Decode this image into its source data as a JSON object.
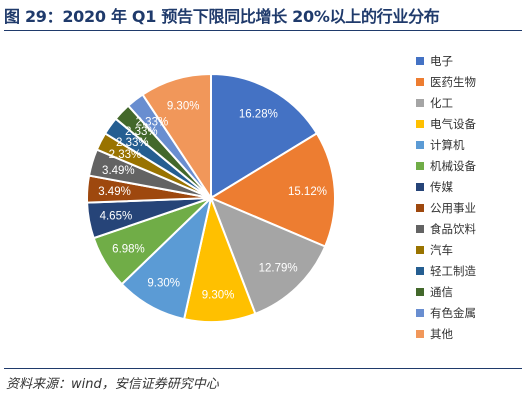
{
  "header": {
    "title": "图 29：2020 年 Q1 预告下限同比增长 20%以上的行业分布"
  },
  "footer": {
    "source": "资料来源：wind，安信证券研究中心"
  },
  "chart_data": {
    "type": "pie",
    "title": "",
    "unit": "%",
    "legend_position": "right",
    "categories": [
      "电子",
      "医药生物",
      "化工",
      "电气设备",
      "计算机",
      "机械设备",
      "传媒",
      "公用事业",
      "食品饮料",
      "汽车",
      "轻工制造",
      "通信",
      "有色金属",
      "其他"
    ],
    "values": [
      16.28,
      15.12,
      12.79,
      9.3,
      9.3,
      6.98,
      4.65,
      3.49,
      3.49,
      2.33,
      2.33,
      2.33,
      2.33,
      9.3
    ],
    "labels": [
      "16.28%",
      "15.12%",
      "12.79%",
      "9.30%",
      "9.30%",
      "6.98%",
      "4.65%",
      "3.49%",
      "3.49%",
      "2.33%",
      "2.33%",
      "2.33%",
      "2.33%",
      "9.30%"
    ],
    "colors": [
      "#4472c4",
      "#ed7d31",
      "#a5a5a5",
      "#ffc000",
      "#5b9bd5",
      "#70ad47",
      "#264478",
      "#9e480e",
      "#636363",
      "#997300",
      "#255e91",
      "#43682b",
      "#698ed0",
      "#f1975a"
    ]
  }
}
